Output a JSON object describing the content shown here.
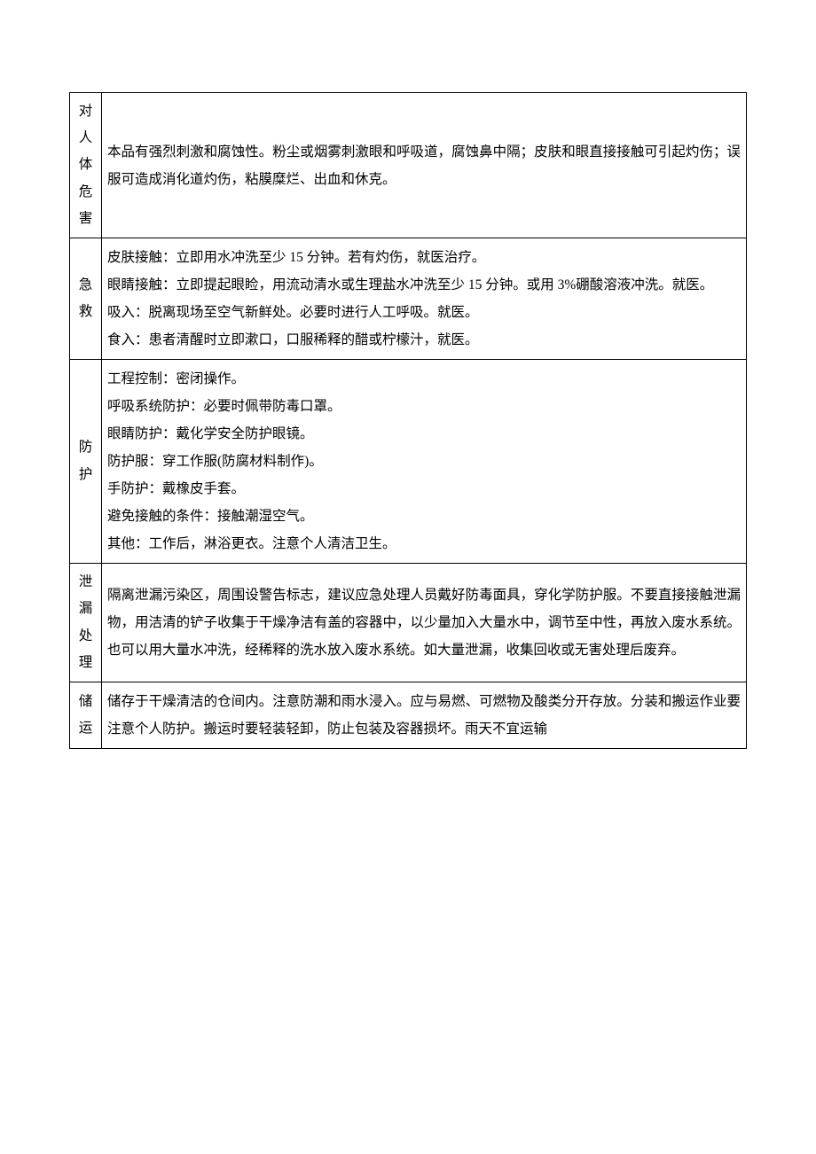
{
  "rows": [
    {
      "label": "对人体危害",
      "content": [
        "本品有强烈刺激和腐蚀性。粉尘或烟雾刺激眼和呼吸道，腐蚀鼻中隔；皮肤和眼直接接触可引起灼伤；误服可造成消化道灼伤，粘膜糜烂、出血和休克。"
      ]
    },
    {
      "label": "急救",
      "content": [
        "皮肤接触：立即用水冲洗至少 15 分钟。若有灼伤，就医治疗。",
        "眼睛接触：立即提起眼睑，用流动清水或生理盐水冲洗至少 15 分钟。或用 3%硼酸溶液冲洗。就医。",
        "吸入：脱离现场至空气新鲜处。必要时进行人工呼吸。就医。",
        "食入：患者清醒时立即漱口，口服稀释的醋或柠檬汁，就医。"
      ]
    },
    {
      "label": "防护",
      "content": [
        "工程控制：密闭操作。",
        "呼吸系统防护：必要时佩带防毒口罩。",
        "眼睛防护：戴化学安全防护眼镜。",
        "防护服：穿工作服(防腐材料制作)。",
        "手防护：戴橡皮手套。",
        "避免接触的条件：接触潮湿空气。",
        "其他：工作后，淋浴更衣。注意个人清洁卫生。"
      ]
    },
    {
      "label": "泄漏处理",
      "content": [
        "隔离泄漏污染区，周围设警告标志，建议应急处理人员戴好防毒面具，穿化学防护服。不要直接接触泄漏物，用洁清的铲子收集于干燥净洁有盖的容器中，以少量加入大量水中，调节至中性，再放入废水系统。也可以用大量水冲洗，经稀释的洗水放入废水系统。如大量泄漏，收集回收或无害处理后废弃。"
      ]
    },
    {
      "label": "储运",
      "content": [
        "储存于干燥清洁的仓间内。注意防潮和雨水浸入。应与易燃、可燃物及酸类分开存放。分装和搬运作业要注意个人防护。搬运时要轻装轻卸，防止包装及容器损坏。雨天不宜运输"
      ]
    }
  ]
}
